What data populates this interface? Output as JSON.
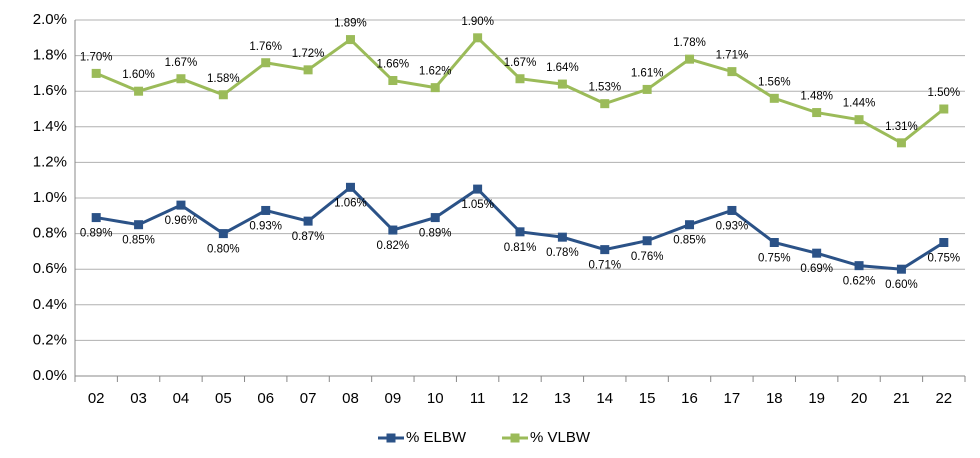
{
  "chart_data": {
    "type": "line",
    "categories": [
      "02",
      "03",
      "04",
      "05",
      "06",
      "07",
      "08",
      "09",
      "10",
      "11",
      "12",
      "13",
      "14",
      "15",
      "16",
      "17",
      "18",
      "19",
      "20",
      "21",
      "22"
    ],
    "series": [
      {
        "name": "% ELBW",
        "color": "#2b5287",
        "values": [
          0.89,
          0.85,
          0.96,
          0.8,
          0.93,
          0.87,
          1.06,
          0.82,
          0.89,
          1.05,
          0.81,
          0.78,
          0.71,
          0.76,
          0.85,
          0.93,
          0.75,
          0.69,
          0.62,
          0.6,
          0.75
        ],
        "value_labels": [
          "0.89%",
          "0.85%",
          "0.96%",
          "0.80%",
          "0.93%",
          "0.87%",
          "1.06%",
          "0.82%",
          "0.89%",
          "1.05%",
          "0.81%",
          "0.78%",
          "0.71%",
          "0.76%",
          "0.85%",
          "0.93%",
          "0.75%",
          "0.69%",
          "0.62%",
          "0.60%",
          "0.75%"
        ]
      },
      {
        "name": "% VLBW",
        "color": "#9bbb59",
        "values": [
          1.7,
          1.6,
          1.67,
          1.58,
          1.76,
          1.72,
          1.89,
          1.66,
          1.62,
          1.9,
          1.67,
          1.64,
          1.53,
          1.61,
          1.78,
          1.71,
          1.56,
          1.48,
          1.44,
          1.31,
          1.5
        ],
        "value_labels": [
          "1.70%",
          "1.60%",
          "1.67%",
          "1.58%",
          "1.76%",
          "1.72%",
          "1.89%",
          "1.66%",
          "1.62%",
          "1.90%",
          "1.67%",
          "1.64%",
          "1.53%",
          "1.61%",
          "1.78%",
          "1.71%",
          "1.56%",
          "1.48%",
          "1.44%",
          "1.31%",
          "1.50%"
        ]
      }
    ],
    "ylim": [
      0,
      2.0
    ],
    "yticks": [
      {
        "value": 0,
        "label": "0.0%"
      },
      {
        "value": 0.2,
        "label": "0.2%"
      },
      {
        "value": 0.4,
        "label": "0.4%"
      },
      {
        "value": 0.6,
        "label": "0.6%"
      },
      {
        "value": 0.8,
        "label": "0.8%"
      },
      {
        "value": 1.0,
        "label": "1.0%"
      },
      {
        "value": 1.2,
        "label": "1.2%"
      },
      {
        "value": 1.4,
        "label": "1.4%"
      },
      {
        "value": 1.6,
        "label": "1.6%"
      },
      {
        "value": 1.8,
        "label": "1.8%"
      },
      {
        "value": 2.0,
        "label": "2.0%"
      }
    ],
    "grid": true,
    "legend": "bottom"
  }
}
